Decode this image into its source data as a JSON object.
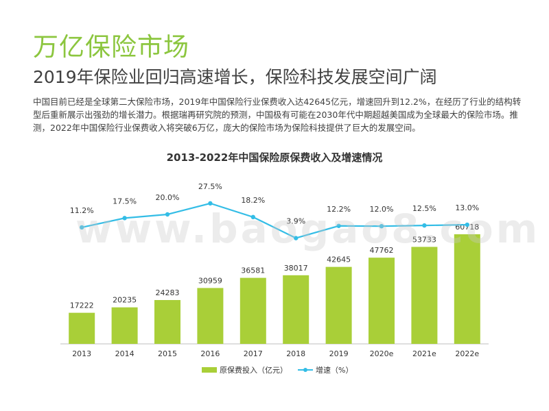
{
  "page": {
    "title": "万亿保险市场",
    "subtitle": "2019年保险业回归高速增长，保险科技发展空间广阔",
    "body": "中国目前已经是全球第二大保险市场，2019年中国保险行业保费收入达42645亿元，增速回升到12.2%，在经历了行业的结构转型后重新展示出强劲的增长潜力。根据瑞再研究院的预测，中国极有可能在2030年代中期超越美国成为全球最大的保险市场。推测，2022年中国保险行业保费收入将突破6万亿，庞大的保险市场为保险科技提供了巨大的发展空间。",
    "watermark": "www.baogao8.com"
  },
  "chart_data": {
    "type": "bar",
    "title": "2013-2022年中国保险原保费收入及增速情况",
    "categories": [
      "2013",
      "2014",
      "2015",
      "2016",
      "2017",
      "2018",
      "2019",
      "2020e",
      "2021e",
      "2022e"
    ],
    "series": [
      {
        "name": "原保费投入（亿元）",
        "type": "bar",
        "values": [
          17222,
          20235,
          24283,
          30959,
          36581,
          38017,
          42645,
          47762,
          53733,
          60718
        ],
        "labels": [
          "17222",
          "20235",
          "24283",
          "30959",
          "36581",
          "38017",
          "42645",
          "47762",
          "53733",
          "60718"
        ]
      },
      {
        "name": "增速（%）",
        "type": "line",
        "values": [
          11.2,
          17.5,
          20.0,
          27.5,
          18.2,
          3.9,
          12.2,
          12.0,
          12.5,
          13.0
        ],
        "labels": [
          "11.2%",
          "17.5%",
          "20.0%",
          "27.5%",
          "18.2%",
          "3.9%",
          "12.2%",
          "12.0%",
          "12.5%",
          "13.0%"
        ]
      }
    ],
    "legend_position": "bottom",
    "grid": false,
    "colors": {
      "bar": "#a9cf38",
      "line": "#33bde6",
      "axis": "#bfbfbf",
      "text": "#333333"
    }
  }
}
